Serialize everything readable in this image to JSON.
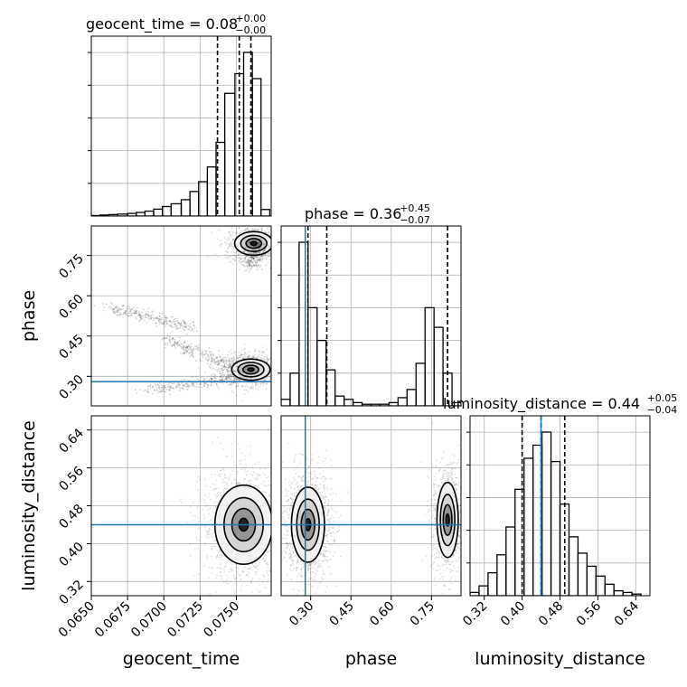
{
  "chart_data": {
    "type": "corner",
    "grid": true,
    "parameters": [
      "geocent_time",
      "phase",
      "luminosity_distance"
    ],
    "axis_labels": {
      "geocent_time": "geocent_time",
      "phase": "phase",
      "luminosity_distance": "luminosity_distance"
    },
    "ranges": {
      "geocent_time": [
        0.065,
        0.0774
      ],
      "phase": [
        0.19,
        0.86
      ],
      "luminosity_distance": [
        0.29,
        0.67
      ]
    },
    "ticks": {
      "geocent_time": [
        "0.0650",
        "0.0675",
        "0.0700",
        "0.0725",
        "0.0750"
      ],
      "phase": [
        "0.30",
        "0.45",
        "0.60",
        "0.75"
      ],
      "luminosity_distance": [
        "0.32",
        "0.40",
        "0.48",
        "0.56",
        "0.64"
      ]
    },
    "titles": [
      {
        "param": "geocent_time",
        "text": "geocent_time = 0.08",
        "sup": "+0.00",
        "sub": "−0.00"
      },
      {
        "param": "phase",
        "text": "phase = 0.36",
        "sup": "+0.45",
        "sub": "−0.07"
      },
      {
        "param": "luminosity_distance",
        "text": "luminosity_distance = 0.44",
        "sup": "+0.05",
        "sub": "−0.04"
      }
    ],
    "quantiles": {
      "geocent_time": [
        0.0737,
        0.0752,
        0.076
      ],
      "phase": [
        0.29,
        0.36,
        0.81
      ],
      "luminosity_distance": [
        0.4,
        0.44,
        0.49
      ]
    },
    "truths": {
      "phase": 0.28,
      "luminosity_distance": 0.44
    },
    "truth_color": "#1f77b4",
    "histograms": {
      "geocent_time": {
        "edges": [
          0.065,
          0.0656,
          0.0662,
          0.0668,
          0.0675,
          0.0681,
          0.0687,
          0.0693,
          0.0699,
          0.0705,
          0.0712,
          0.0718,
          0.0724,
          0.073,
          0.0736,
          0.0742,
          0.0749,
          0.0755,
          0.0761,
          0.0767,
          0.0773
        ],
        "counts": [
          0.3,
          0.6,
          0.9,
          1.2,
          1.6,
          2.2,
          3.0,
          4.2,
          5.8,
          7.5,
          10.0,
          15.0,
          21.0,
          30.0,
          45.0,
          75.0,
          87.0,
          100.0,
          84.0,
          4.0
        ]
      },
      "phase": {
        "edges": [
          0.19,
          0.2235,
          0.257,
          0.2905,
          0.324,
          0.3575,
          0.391,
          0.4245,
          0.458,
          0.4915,
          0.525,
          0.5585,
          0.592,
          0.6255,
          0.659,
          0.6925,
          0.726,
          0.7595,
          0.793,
          0.8265,
          0.86
        ],
        "counts": [
          4,
          20,
          100,
          60,
          40,
          22,
          6,
          4,
          2,
          1,
          1,
          1,
          2,
          5,
          10,
          26,
          60,
          48,
          20,
          2
        ]
      },
      "luminosity_distance": {
        "edges": [
          0.29,
          0.309,
          0.328,
          0.347,
          0.366,
          0.385,
          0.404,
          0.423,
          0.442,
          0.461,
          0.48,
          0.499,
          0.518,
          0.537,
          0.556,
          0.575,
          0.594,
          0.613,
          0.632,
          0.651,
          0.67
        ],
        "counts": [
          2,
          6,
          14,
          25,
          42,
          65,
          84,
          92,
          100,
          82,
          56,
          36,
          26,
          18,
          12,
          7,
          3,
          2,
          1,
          0
        ]
      }
    },
    "contour_blobs": [
      {
        "x": "geocent_time",
        "y": "phase",
        "cx": 0.076,
        "cy": 0.325,
        "sx": 0.0006,
        "sy": 0.018,
        "w": 1.0
      },
      {
        "x": "geocent_time",
        "y": "phase",
        "cx": 0.0762,
        "cy": 0.795,
        "sx": 0.0006,
        "sy": 0.02,
        "w": 0.65
      },
      {
        "x": "phase",
        "y": "luminosity_distance",
        "cx": 0.29,
        "cy": 0.44,
        "sx": 0.028,
        "sy": 0.036,
        "w": 1.0
      },
      {
        "x": "phase",
        "y": "luminosity_distance",
        "cx": 0.81,
        "cy": 0.45,
        "sx": 0.018,
        "sy": 0.036,
        "w": 0.7
      },
      {
        "x": "geocent_time",
        "y": "luminosity_distance",
        "cx": 0.0755,
        "cy": 0.44,
        "sx": 0.0009,
        "sy": 0.038,
        "w": 1.0
      }
    ]
  }
}
